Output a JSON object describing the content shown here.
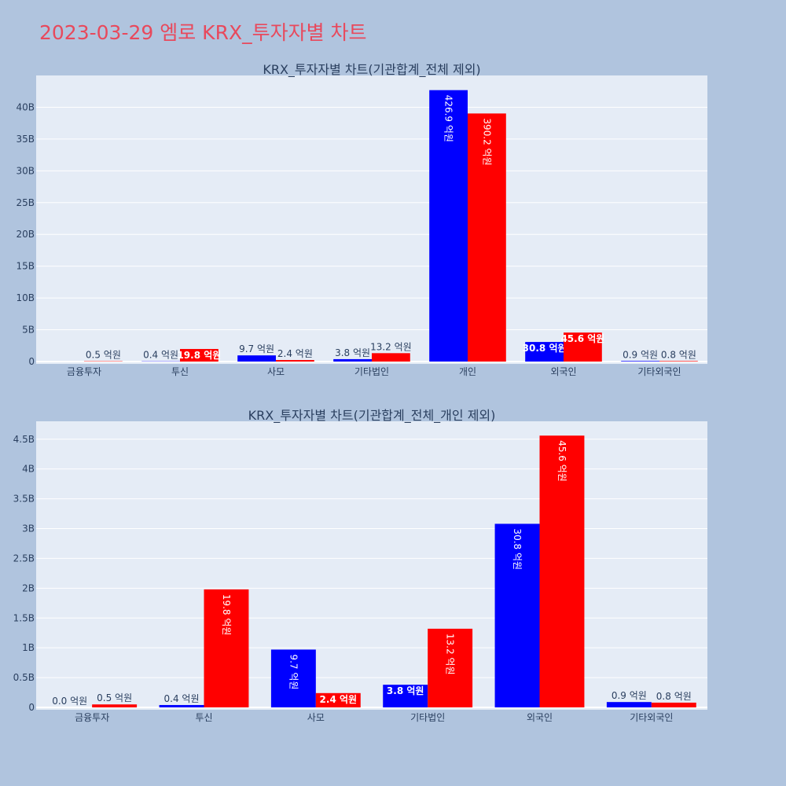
{
  "page": {
    "title": "2023-03-29 엠로 KRX_투자자별 차트"
  },
  "colors": {
    "background": "#b0c4de",
    "plot_background": "#e5ecf6",
    "title": "#e8495c",
    "series_a": "#0000ff",
    "series_b": "#ff0000",
    "text": "#2a3f5f"
  },
  "chart_data": [
    {
      "type": "bar",
      "title": "KRX_투자자별 차트(기관합계_전체 제외)",
      "categories": [
        "금융투자",
        "투신",
        "사모",
        "기타법인",
        "개인",
        "외국인",
        "기타외국인"
      ],
      "ylim": [
        0,
        45
      ],
      "ytick_values": [
        0,
        5,
        10,
        15,
        20,
        25,
        30,
        35,
        40
      ],
      "ytick_labels": [
        "0",
        "5B",
        "10B",
        "15B",
        "20B",
        "25B",
        "30B",
        "35B",
        "40B"
      ],
      "series": [
        {
          "values": [
            0,
            0.04,
            0.97,
            0.38,
            42.69,
            3.08,
            0.09
          ],
          "labels": [
            "",
            "0.4 억원",
            "9.7 억원",
            "3.8 억원",
            "426.9 억원",
            "30.8 억원",
            "0.9 억원"
          ]
        },
        {
          "values": [
            0.05,
            1.98,
            0.24,
            1.32,
            39.02,
            4.56,
            0.08
          ],
          "labels": [
            "0.5 억원",
            "19.8 억원",
            "2.4 억원",
            "13.2 억원",
            "390.2 억원",
            "45.6 억원",
            "0.8 억원"
          ]
        }
      ],
      "grid": true,
      "legend": "none"
    },
    {
      "type": "bar",
      "title": "KRX_투자자별 차트(기관합계_전체_개인 제외)",
      "categories": [
        "금융투자",
        "투신",
        "사모",
        "기타법인",
        "외국인",
        "기타외국인"
      ],
      "ylim": [
        0,
        4.8
      ],
      "ytick_values": [
        0,
        0.5,
        1,
        1.5,
        2,
        2.5,
        3,
        3.5,
        4,
        4.5
      ],
      "ytick_labels": [
        "0",
        "0.5B",
        "1B",
        "1.5B",
        "2B",
        "2.5B",
        "3B",
        "3.5B",
        "4B",
        "4.5B"
      ],
      "series": [
        {
          "values": [
            0,
            0.04,
            0.97,
            0.38,
            3.08,
            0.09
          ],
          "labels": [
            "0.0 억원",
            "0.4 억원",
            "9.7 억원",
            "3.8 억원",
            "30.8 억원",
            "0.9 억원"
          ]
        },
        {
          "values": [
            0.05,
            1.98,
            0.24,
            1.32,
            4.56,
            0.08
          ],
          "labels": [
            "0.5 억원",
            "19.8 억원",
            "2.4 억원",
            "13.2 억원",
            "45.6 억원",
            "0.8 억원"
          ]
        }
      ],
      "grid": true,
      "legend": "none"
    }
  ]
}
